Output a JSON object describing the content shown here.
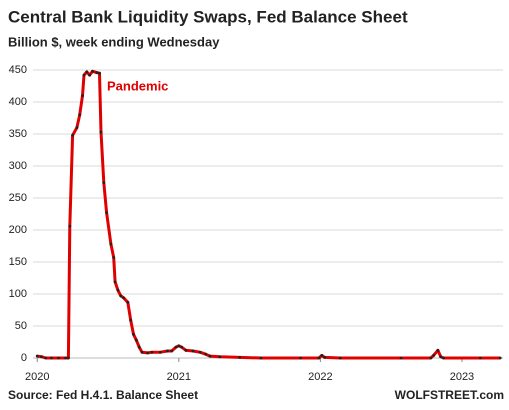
{
  "chart_data": {
    "type": "line",
    "title": "Central Bank Liquidity Swaps, Fed Balance Sheet",
    "subtitle": "Billion $, week ending Wednesday",
    "annotation": "Pandemic",
    "source": "Source: Fed H.4.1. Balance Sheet",
    "brand": "WOLFSTREET.com",
    "color": "#e00000",
    "marker_color": "#222222",
    "grid": true,
    "x": [
      2020.0,
      2020.03,
      2020.06,
      2020.1,
      2020.15,
      2020.2,
      2020.22,
      2020.23,
      2020.25,
      2020.28,
      2020.3,
      2020.32,
      2020.33,
      2020.35,
      2020.37,
      2020.39,
      2020.42,
      2020.44,
      2020.45,
      2020.47,
      2020.49,
      2020.52,
      2020.54,
      2020.55,
      2020.57,
      2020.59,
      2020.61,
      2020.64,
      2020.66,
      2020.68,
      2020.7,
      2020.72,
      2020.74,
      2020.78,
      2020.81,
      2020.87,
      2020.92,
      2020.95,
      2020.98,
      2021.0,
      2021.02,
      2021.05,
      2021.1,
      2021.15,
      2021.19,
      2021.22,
      2021.29,
      2021.43,
      2021.58,
      2021.86,
      2021.99,
      2022.01,
      2022.03,
      2022.14,
      2022.57,
      2022.78,
      2022.8,
      2022.83,
      2022.85,
      2022.87,
      2023.13,
      2023.27
    ],
    "values": [
      3,
      2,
      0,
      0,
      0,
      0,
      0,
      206,
      348,
      360,
      380,
      410,
      442,
      447,
      442,
      448,
      446,
      445,
      353,
      274,
      227,
      178,
      157,
      119,
      106,
      97,
      94,
      87,
      59,
      37,
      28,
      17,
      9,
      8,
      9,
      9,
      11,
      11,
      17,
      19,
      17,
      12,
      11,
      9,
      6,
      3,
      2,
      1,
      0,
      0,
      0,
      4,
      1,
      0,
      0,
      0,
      4,
      12,
      2,
      0,
      0,
      0
    ],
    "xlim": [
      2019.97,
      2023.29
    ],
    "xticks": [
      2020,
      2021,
      2022,
      2023
    ],
    "ylim": [
      0,
      450
    ],
    "yticks": [
      0,
      50,
      100,
      150,
      200,
      250,
      300,
      350,
      400,
      450
    ]
  }
}
